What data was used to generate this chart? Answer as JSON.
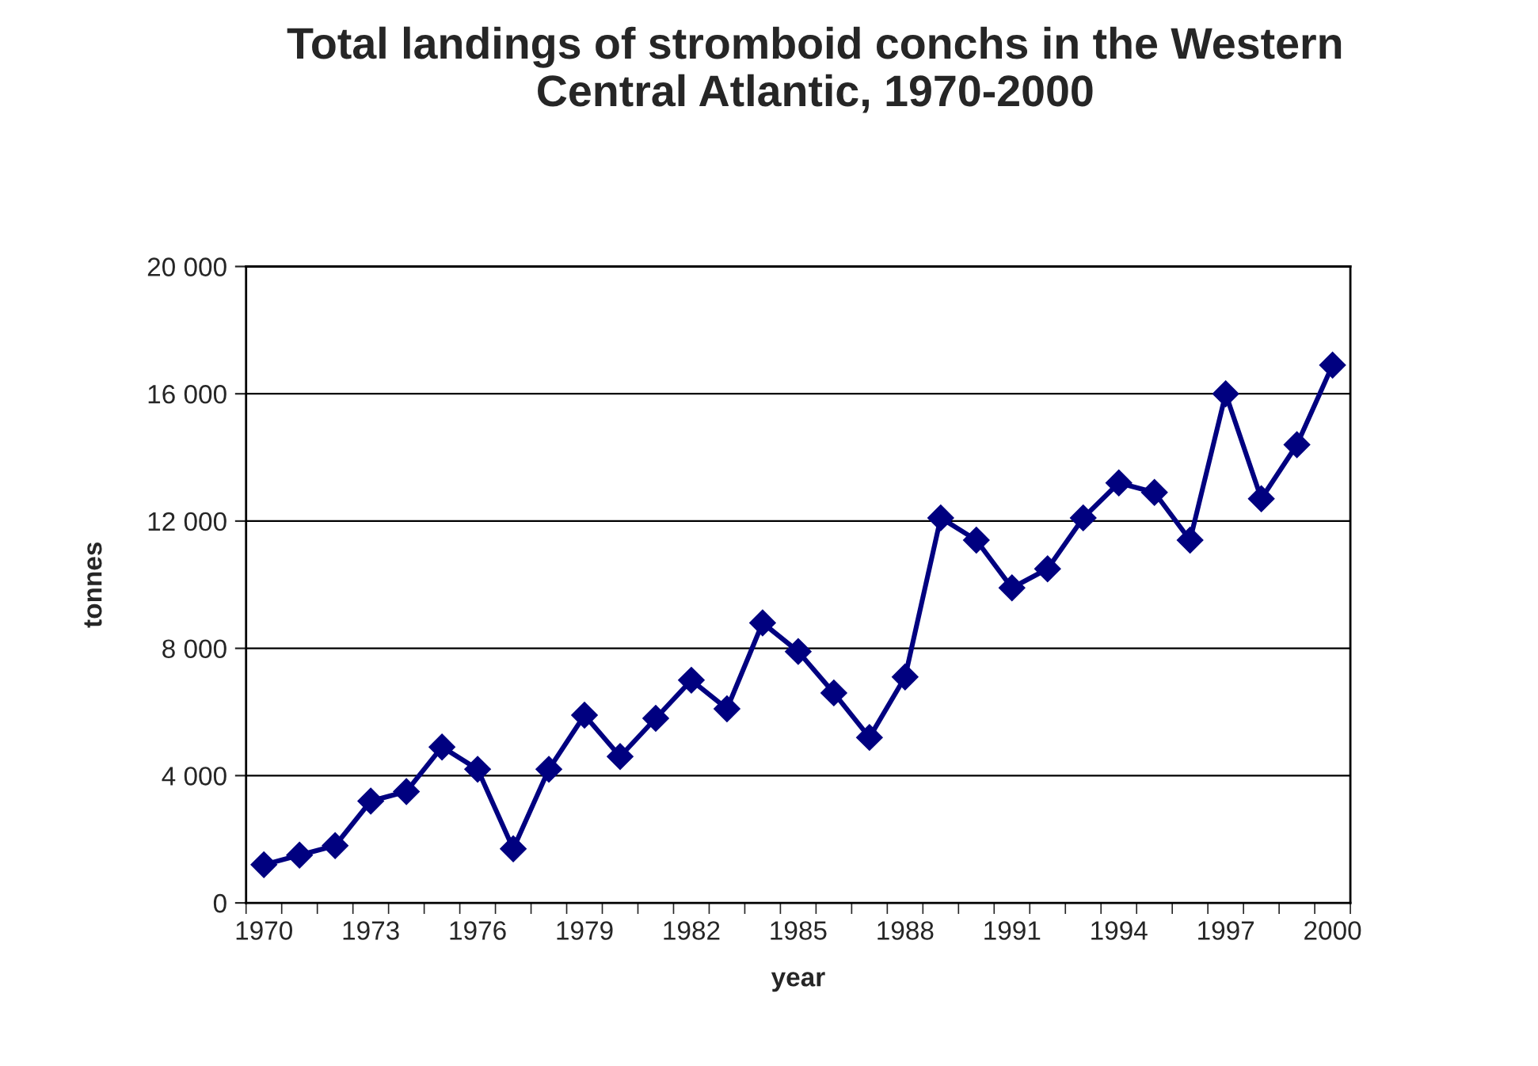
{
  "chart_data": {
    "type": "line",
    "title": "Total landings of stromboid conchs in the Western\nCentral Atlantic, 1970-2000",
    "xlabel": "year",
    "ylabel": "tonnes",
    "categories": [
      "1970",
      null,
      null,
      "1973",
      null,
      null,
      "1976",
      null,
      null,
      "1979",
      null,
      null,
      "1982",
      null,
      null,
      "1985",
      null,
      null,
      "1988",
      null,
      null,
      "1991",
      null,
      null,
      "1994",
      null,
      null,
      "1997",
      null,
      null,
      "2000"
    ],
    "series": [
      {
        "color": "#000080",
        "values": [
          1200,
          1500,
          1800,
          3200,
          3500,
          4900,
          4200,
          1700,
          4200,
          5900,
          4600,
          5800,
          7000,
          6100,
          8800,
          7900,
          6600,
          5200,
          7100,
          12100,
          11400,
          9900,
          10500,
          12100,
          13200,
          12900,
          11400,
          16000,
          12700,
          14400,
          16900
        ]
      }
    ],
    "ylim": [
      0,
      20000
    ],
    "yticks": [
      {
        "value": 0,
        "label": "0"
      },
      {
        "value": 4000,
        "label": "4 000"
      },
      {
        "value": 8000,
        "label": "8 000"
      },
      {
        "value": 12000,
        "label": "12 000"
      },
      {
        "value": 16000,
        "label": "16 000"
      },
      {
        "value": 20000,
        "label": "20 000"
      }
    ],
    "grid": "y",
    "marker": "diamond",
    "line_style": "solid",
    "legend": false
  }
}
